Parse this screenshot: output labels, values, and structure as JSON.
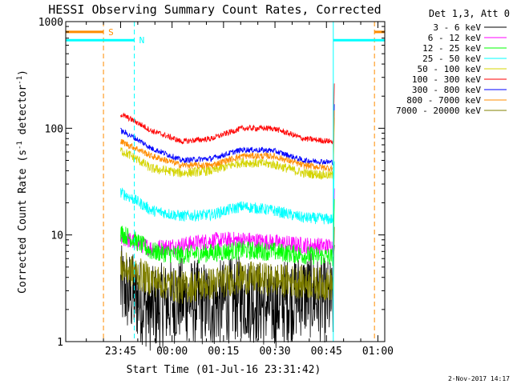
{
  "chart_data": {
    "type": "line",
    "title": "HESSI Observing Summary Count Rates, Corrected",
    "xlabel": "Start Time (01-Jul-16 23:31:42)",
    "ylabel_main": "Corrected Count Rate (s",
    "ylabel_sup1": "-1",
    "ylabel_mid": " detector",
    "ylabel_sup2": "-1",
    "ylabel_end": ")",
    "y_scale": "log",
    "ylim": [
      1,
      1000
    ],
    "xlim_min": [
      -16,
      77
    ],
    "y_ticks": [
      {
        "value": 1,
        "label": "1"
      },
      {
        "value": 10,
        "label": "10"
      },
      {
        "value": 100,
        "label": "100"
      },
      {
        "value": 1000,
        "label": "1000"
      }
    ],
    "x_ticks": [
      {
        "value": 0,
        "label": "23:45"
      },
      {
        "value": 15,
        "label": "00:00"
      },
      {
        "value": 30,
        "label": "00:15"
      },
      {
        "value": 45,
        "label": "00:30"
      },
      {
        "value": 60,
        "label": "00:45"
      },
      {
        "value": 75,
        "label": "01:00"
      }
    ],
    "legend_title": "Det 1,3, Att 0",
    "legend_position": "top-right",
    "series": [
      {
        "name": "3 - 6 keV",
        "color": "#000000",
        "base": [
          3.2,
          2.0,
          2.5,
          2.2,
          2.6,
          2.1,
          2.8,
          2.3
        ],
        "noise": 0.9
      },
      {
        "name": "6 - 12 keV",
        "color": "#ff00ff",
        "base": [
          9.5,
          7.5,
          8.0,
          8.8,
          9.0,
          8.5,
          8.0,
          7.8
        ],
        "noise": 0.18
      },
      {
        "name": "12 - 25 keV",
        "color": "#00ff00",
        "base": [
          10.5,
          7.0,
          6.5,
          6.8,
          7.2,
          7.0,
          6.5,
          6.2
        ],
        "noise": 0.2
      },
      {
        "name": "25 - 50 keV",
        "color": "#00ffff",
        "base": [
          25,
          17,
          15,
          15.5,
          18.5,
          17,
          14.5,
          14
        ],
        "noise": 0.12
      },
      {
        "name": "50 - 100 keV",
        "color": "#d4d400",
        "base": [
          62,
          42,
          38,
          40,
          48,
          46,
          38,
          36
        ],
        "noise": 0.1
      },
      {
        "name": "100 - 300 keV",
        "color": "#ff0000",
        "base": [
          135,
          95,
          75,
          80,
          100,
          100,
          80,
          75
        ],
        "noise": 0.06
      },
      {
        "name": "300 - 800 keV",
        "color": "#0000ff",
        "base": [
          95,
          65,
          50,
          52,
          63,
          62,
          50,
          48
        ],
        "noise": 0.06
      },
      {
        "name": "800 - 7000 keV",
        "color": "#ff8c00",
        "base": [
          75,
          55,
          45,
          45,
          55,
          55,
          45,
          42
        ],
        "noise": 0.07
      },
      {
        "name": "7000 - 20000 keV",
        "color": "#808000",
        "base": [
          5.0,
          3.8,
          3.2,
          3.5,
          4.0,
          3.8,
          3.6,
          3.4
        ],
        "noise": 0.35
      }
    ],
    "series_x_range_min": [
      0,
      62
    ],
    "markers": [
      {
        "label": "S",
        "color": "#ff8c00",
        "x_start_min": -5,
        "x_end_min": 74,
        "bar_y": 800
      },
      {
        "label": "N",
        "color": "#00ffff",
        "x_start_min": 4,
        "x_end_min": 62,
        "bar_y": 670
      }
    ],
    "timestamp": "2-Nov-2017 14:17"
  }
}
